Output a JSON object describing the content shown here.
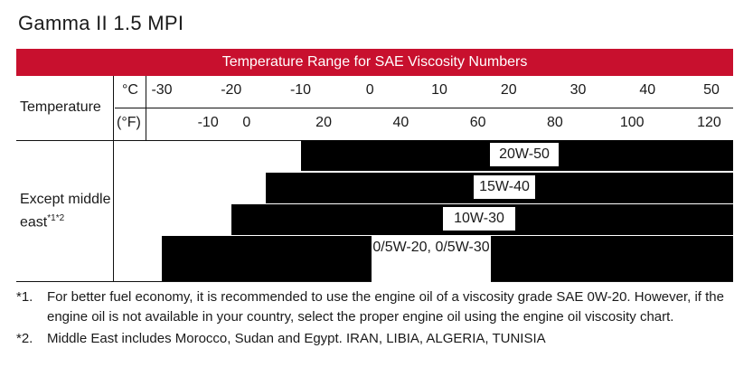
{
  "title": "Gamma II 1.5 MPI",
  "chart_data": {
    "type": "table",
    "header": "Temperature Range for SAE Viscosity Numbers",
    "row_label_temperature": "Temperature",
    "unit_c": "°C",
    "unit_f": "(°F)",
    "celsius_ticks": [
      "-30",
      "-20",
      "-10",
      "0",
      "10",
      "20",
      "30",
      "40",
      "50"
    ],
    "fahrenheit_ticks": [
      "-10",
      "0",
      "20",
      "40",
      "60",
      "80",
      "100",
      "120"
    ],
    "region_label": "Except middle east",
    "region_sup": "*1*2",
    "grades": [
      {
        "label": "20W-50",
        "min_c": -10,
        "max_c": 50
      },
      {
        "label": "15W-40",
        "min_c": -15,
        "max_c": 50
      },
      {
        "label": "10W-30",
        "min_c": -20,
        "max_c": 50
      },
      {
        "label": "0/5W-20, 0/5W-30",
        "min_c": -30,
        "max_c": 50
      }
    ]
  },
  "notes": [
    {
      "mark": "*1.",
      "text": "For better fuel economy, it is recommended to use the engine oil of a viscosity grade SAE 0W-20. However, if the engine oil is not available in your country, select the proper engine oil using the engine oil viscosity chart."
    },
    {
      "mark": "*2.",
      "text": "Middle East includes Morocco, Sudan and Egypt. IRAN, LIBIA, ALGERIA, TUNISIA"
    }
  ]
}
